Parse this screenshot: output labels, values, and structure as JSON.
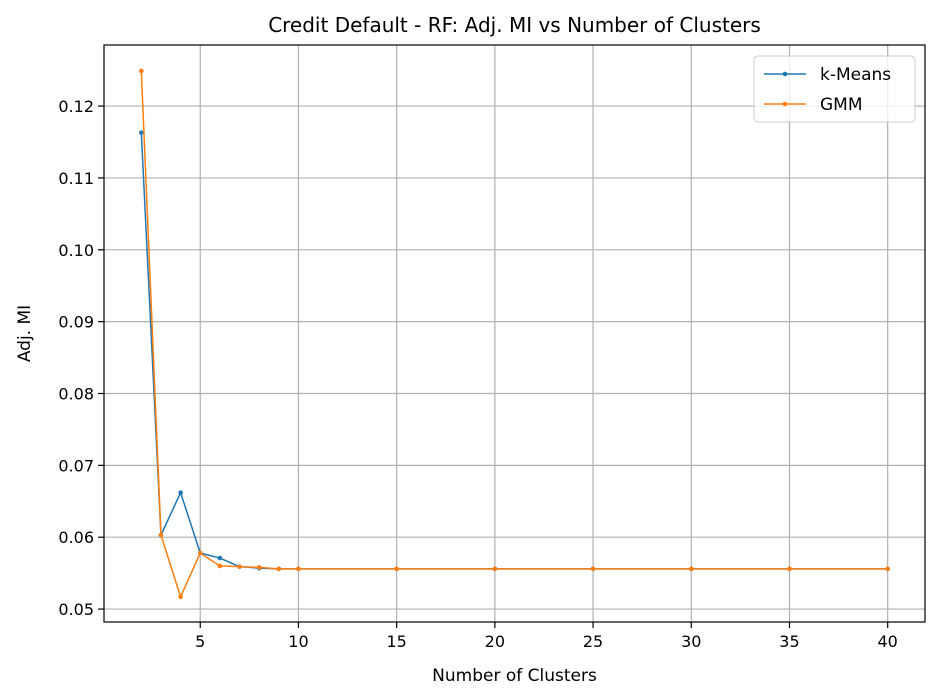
{
  "chart_data": {
    "type": "line",
    "title": "Credit Default - RF: Adj. MI vs Number of Clusters",
    "xlabel": "Number of Clusters",
    "ylabel": "Adj. MI",
    "xlim": [
      0.1,
      41.9
    ],
    "ylim": [
      0.0482,
      0.1285
    ],
    "xticks": [
      5,
      10,
      15,
      20,
      25,
      30,
      35,
      40
    ],
    "yticks": [
      0.05,
      0.06,
      0.07,
      0.08,
      0.09,
      0.1,
      0.11,
      0.12
    ],
    "ytick_labels": [
      "0.05",
      "0.06",
      "0.07",
      "0.08",
      "0.09",
      "0.10",
      "0.11",
      "0.12"
    ],
    "grid": true,
    "legend": "top-right",
    "x": [
      2,
      3,
      4,
      5,
      6,
      7,
      8,
      9,
      10,
      15,
      20,
      25,
      30,
      35,
      40
    ],
    "series": [
      {
        "name": "k-Means",
        "color": "#1f77b4",
        "values": [
          0.1163,
          0.0603,
          0.0662,
          0.0578,
          0.0571,
          0.0559,
          0.0557,
          0.0556,
          0.0556,
          0.0556,
          0.0556,
          0.0556,
          0.0556,
          0.0556,
          0.0556
        ]
      },
      {
        "name": "GMM",
        "color": "#ff7f0e",
        "values": [
          0.1249,
          0.0603,
          0.0517,
          0.0578,
          0.056,
          0.0559,
          0.0558,
          0.0556,
          0.0556,
          0.0556,
          0.0556,
          0.0556,
          0.0556,
          0.0556,
          0.0556
        ]
      }
    ]
  }
}
